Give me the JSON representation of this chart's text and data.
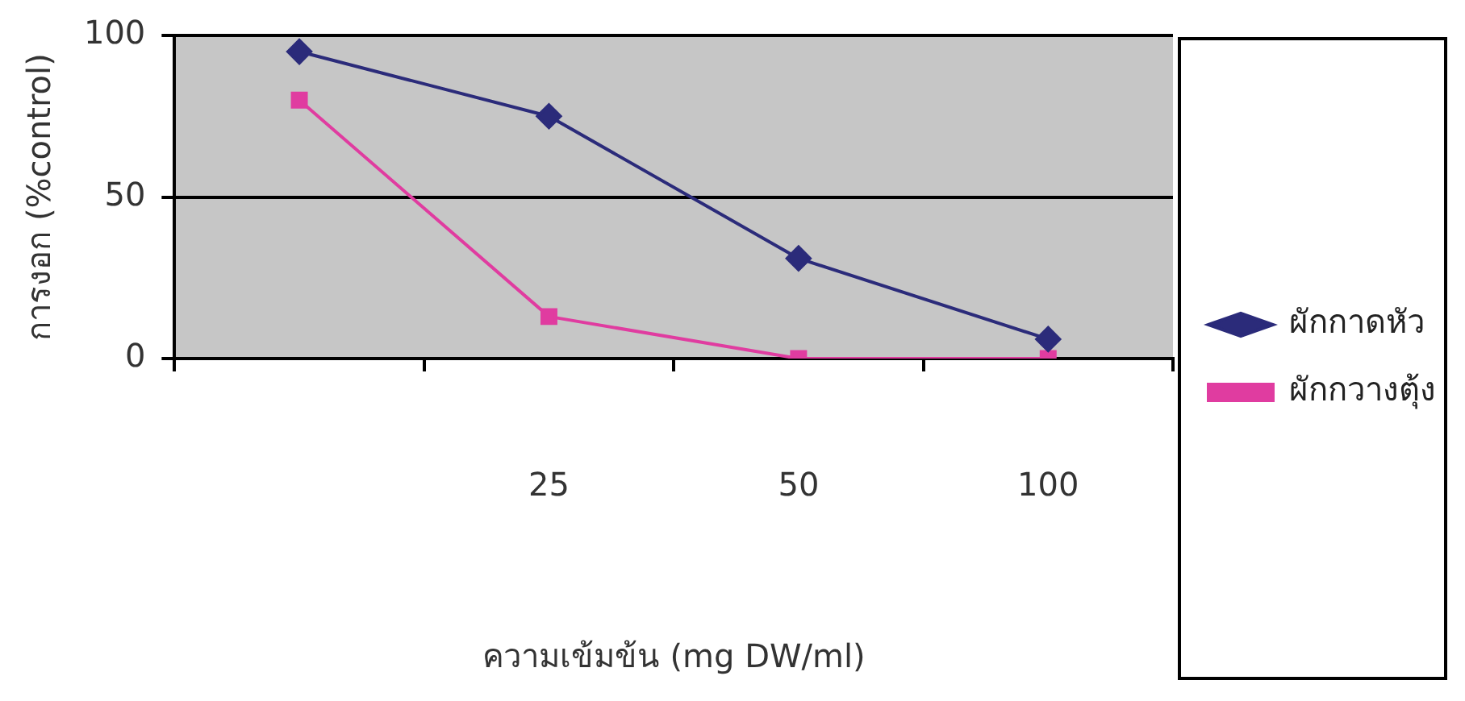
{
  "chart_data": {
    "type": "line",
    "xlabel": "ความเข้มข้น (mg DW/ml)",
    "ylabel": "การงอก (%control)",
    "categories": [
      null,
      "25",
      "50",
      "100"
    ],
    "series": [
      {
        "name": "ผักกาดหัว",
        "color": "#2b2b7a",
        "values": [
          95,
          75,
          31,
          6
        ],
        "marker": "diamond"
      },
      {
        "name": "ผักกวางตุ้ง",
        "color": "#e03ca0",
        "values": [
          80,
          13,
          0,
          0
        ],
        "marker": "square"
      }
    ],
    "ylim": [
      0,
      100
    ],
    "yticks": [
      0,
      50,
      100
    ],
    "grid": "y",
    "legend": "right",
    "line_style": "solid"
  }
}
